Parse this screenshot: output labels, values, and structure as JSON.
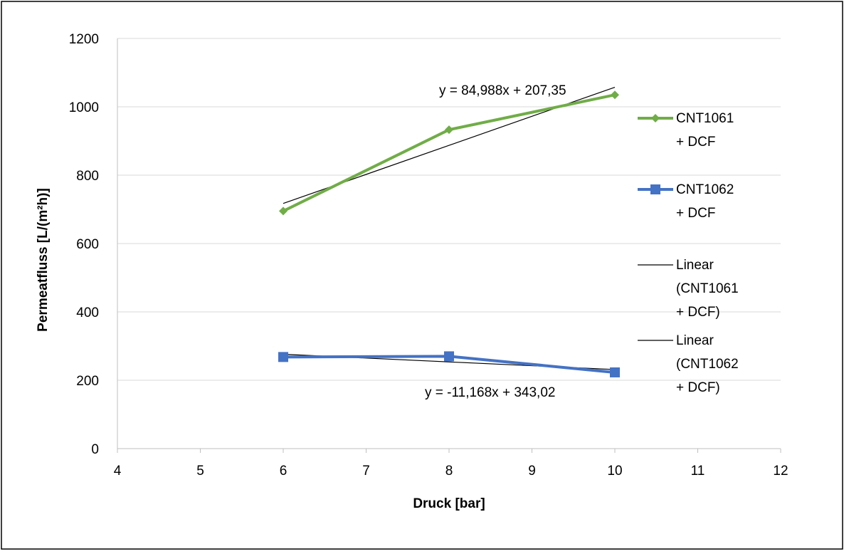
{
  "chart_data": {
    "type": "line",
    "title": "",
    "xlabel": "Druck [bar]",
    "ylabel": "Permeatfluss  [L/(m²h)]",
    "xlim": [
      4,
      12
    ],
    "ylim": [
      0,
      1200
    ],
    "x_ticks": [
      "4",
      "5",
      "6",
      "7",
      "8",
      "9",
      "10",
      "11",
      "12"
    ],
    "y_ticks": [
      "0",
      "200",
      "400",
      "600",
      "800",
      "1000",
      "1200"
    ],
    "grid": "horizontal",
    "legend_position": "right",
    "series": [
      {
        "name": "CNT1061 + DCF",
        "legend_lines": [
          "CNT1061",
          "+ DCF"
        ],
        "color": "#70AD47",
        "marker": "diamond",
        "x": [
          6,
          8,
          10
        ],
        "y": [
          695,
          933,
          1035
        ]
      },
      {
        "name": "CNT1062 + DCF",
        "legend_lines": [
          "CNT1062",
          "+ DCF"
        ],
        "color": "#4472C4",
        "marker": "square",
        "x": [
          6,
          8,
          10
        ],
        "y": [
          268,
          270,
          223
        ]
      }
    ],
    "trendlines": [
      {
        "name": "Linear (CNT1061 + DCF)",
        "legend_lines": [
          "Linear",
          "(CNT1061",
          "+ DCF)"
        ],
        "color": "#000000",
        "slope": 84.988,
        "intercept": 207.35,
        "x_range": [
          6,
          10
        ],
        "equation": "y = 84,988x + 207,35"
      },
      {
        "name": "Linear (CNT1062 + DCF)",
        "legend_lines": [
          "Linear",
          "(CNT1062",
          "+ DCF)"
        ],
        "color": "#000000",
        "slope": -11.168,
        "intercept": 343.02,
        "x_range": [
          6,
          10
        ],
        "equation": "y = -11,168x + 343,02"
      }
    ]
  }
}
